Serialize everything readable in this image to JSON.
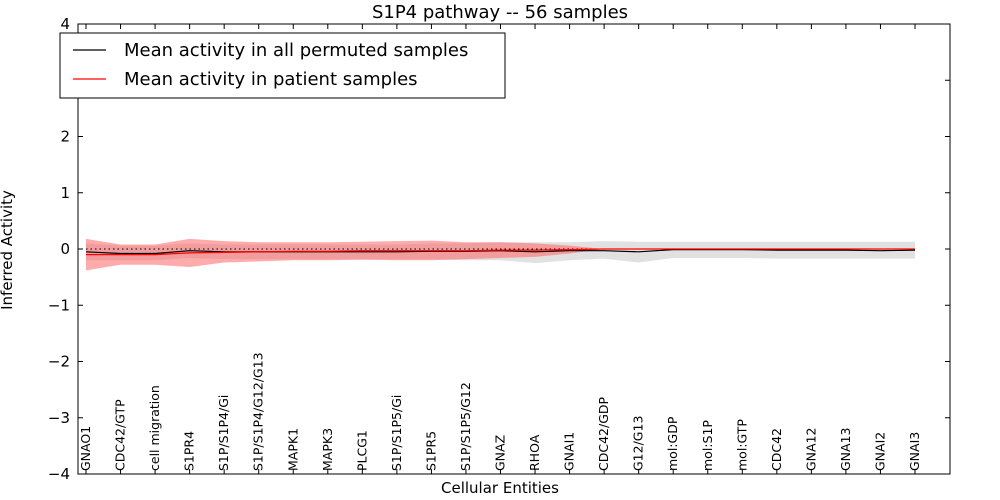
{
  "chart_data": {
    "type": "line",
    "title": "S1P4 pathway -- 56 samples",
    "xlabel": "Cellular Entities",
    "ylabel": "Inferred Activity",
    "ylim": [
      -4,
      4
    ],
    "yticks": [
      -4,
      -3,
      -2,
      -1,
      0,
      1,
      2,
      3,
      4
    ],
    "ytick_labels": [
      "−4",
      "−3",
      "−2",
      "−1",
      "0",
      "1",
      "2",
      "3",
      "4"
    ],
    "baseline": 0,
    "legend_location": "top-left",
    "categories": [
      "GNAO1",
      "CDC42/GTP",
      "cell migration",
      "S1PR4",
      "S1P/S1P4/Gi",
      "S1P/S1P4/G12/G13",
      "MAPK1",
      "MAPK3",
      "PLCG1",
      "S1P/S1P5/Gi",
      "S1PR5",
      "S1P/S1P5/G12",
      "GNAZ",
      "RHOA",
      "GNAI1",
      "CDC42/GDP",
      "G12/G13",
      "mol:GDP",
      "mol:S1P",
      "mol:GTP",
      "CDC42",
      "GNA12",
      "GNA13",
      "GNAI2",
      "GNAI3"
    ],
    "series": [
      {
        "name": "Mean activity in all permuted samples",
        "color": "#000000",
        "values": [
          -0.05,
          -0.08,
          -0.08,
          -0.03,
          -0.05,
          -0.05,
          -0.05,
          -0.05,
          -0.05,
          -0.05,
          -0.04,
          -0.04,
          -0.03,
          -0.05,
          -0.03,
          -0.03,
          -0.05,
          -0.01,
          -0.01,
          -0.01,
          -0.02,
          -0.02,
          -0.02,
          -0.03,
          -0.02
        ],
        "band_upper": [
          0.1,
          0.06,
          0.06,
          0.1,
          0.08,
          0.08,
          0.08,
          0.08,
          0.08,
          0.08,
          0.1,
          0.1,
          0.12,
          0.12,
          0.12,
          0.14,
          0.13,
          0.13,
          0.13,
          0.13,
          0.13,
          0.13,
          0.13,
          0.13,
          0.13
        ],
        "band_lower": [
          -0.2,
          -0.2,
          -0.2,
          -0.16,
          -0.18,
          -0.18,
          -0.18,
          -0.18,
          -0.18,
          -0.18,
          -0.18,
          -0.2,
          -0.2,
          -0.25,
          -0.2,
          -0.17,
          -0.24,
          -0.16,
          -0.16,
          -0.16,
          -0.17,
          -0.17,
          -0.17,
          -0.17,
          -0.17
        ],
        "band_color": "#aaaaaa"
      },
      {
        "name": "Mean activity in patient samples",
        "color": "#ff0000",
        "values": [
          -0.1,
          -0.1,
          -0.1,
          -0.07,
          -0.06,
          -0.05,
          -0.04,
          -0.04,
          -0.03,
          -0.03,
          -0.03,
          -0.03,
          -0.02,
          -0.02,
          -0.01,
          0,
          0,
          0,
          0,
          0,
          0,
          0,
          0,
          0,
          0
        ],
        "band_upper": [
          0.18,
          0.08,
          0.08,
          0.18,
          0.14,
          0.12,
          0.12,
          0.12,
          0.13,
          0.14,
          0.15,
          0.12,
          0.12,
          0.1,
          0.06,
          0,
          0,
          0,
          0,
          0,
          0,
          0,
          0,
          0,
          0
        ],
        "band_lower": [
          -0.38,
          -0.28,
          -0.28,
          -0.32,
          -0.24,
          -0.22,
          -0.2,
          -0.2,
          -0.19,
          -0.2,
          -0.2,
          -0.18,
          -0.16,
          -0.14,
          -0.08,
          0,
          0,
          0,
          0,
          0,
          0,
          0,
          0,
          0,
          0
        ],
        "band_color": "#ff6666"
      }
    ]
  }
}
